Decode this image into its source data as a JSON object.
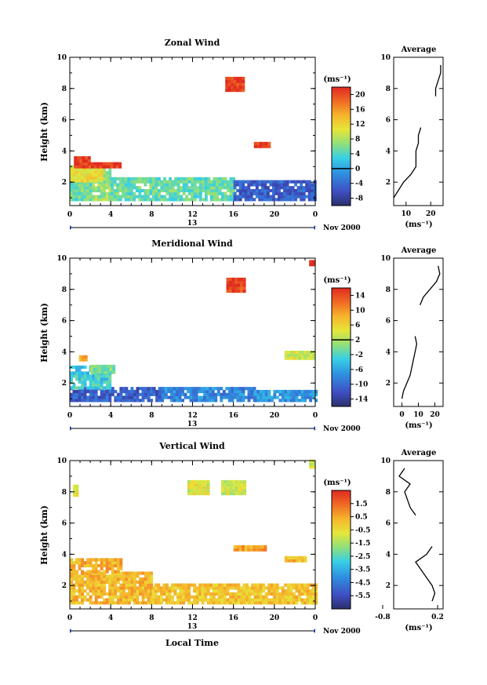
{
  "figure": {
    "bottom_label": "Local Time",
    "date_label": "Nov 2000",
    "day_label": "13",
    "unit_label": "(ms⁻¹)"
  },
  "chart_data": [
    {
      "type": "heatmap",
      "title": "Zonal Wind",
      "xlabel": "",
      "ylabel": "Height (km)",
      "xlim": [
        0,
        24
      ],
      "ylim": [
        0.5,
        10
      ],
      "x_ticks": [
        "0",
        "4",
        "8",
        "12",
        "16",
        "20",
        "0"
      ],
      "y_ticks": [
        "2",
        "4",
        "6",
        "8",
        "10"
      ],
      "colorbar": {
        "label": "(ms⁻¹)",
        "range": [
          -10,
          22
        ],
        "ticks": [
          "-8",
          "-4",
          "0",
          "4",
          "8",
          "12",
          "16",
          "20"
        ],
        "line_at": 0
      },
      "regions": [
        {
          "t": [
            0,
            4
          ],
          "h": [
            0.8,
            2.9
          ],
          "v": 7
        },
        {
          "t": [
            0,
            2
          ],
          "h": [
            0.8,
            2.0
          ],
          "v": 5
        },
        {
          "t": [
            0,
            3
          ],
          "h": [
            2.0,
            2.9
          ],
          "v": 11
        },
        {
          "t": [
            4,
            16
          ],
          "h": [
            0.8,
            2.3
          ],
          "v": 5
        },
        {
          "t": [
            16,
            24
          ],
          "h": [
            0.8,
            2.0
          ],
          "v": -5
        },
        {
          "t": [
            0.4,
            2.0
          ],
          "h": [
            2.9,
            3.6
          ],
          "v": 21
        },
        {
          "t": [
            1.8,
            4.8
          ],
          "h": [
            2.9,
            3.2
          ],
          "v": 21
        },
        {
          "t": [
            15.2,
            17.0
          ],
          "h": [
            7.8,
            8.6
          ],
          "v": 21
        },
        {
          "t": [
            18.0,
            19.5
          ],
          "h": [
            4.2,
            4.4
          ],
          "v": 21
        }
      ],
      "profile": {
        "title": "Average",
        "xlabel": "(ms⁻¹)",
        "xlim": [
          5,
          25
        ],
        "x_ticks": [
          "10",
          "20"
        ],
        "h": [
          1.0,
          1.5,
          2.0,
          2.5,
          3.0,
          3.5,
          4.0,
          4.5,
          5.0,
          5.5,
          7.5,
          8.0,
          8.5,
          9.0,
          9.5
        ],
        "v": [
          5,
          7,
          9,
          12,
          14,
          14,
          14,
          15,
          15,
          16,
          22,
          22,
          23,
          24,
          24
        ]
      }
    },
    {
      "type": "heatmap",
      "title": "Meridional Wind",
      "xlabel": "",
      "ylabel": "Height (km)",
      "xlim": [
        0,
        24
      ],
      "ylim": [
        0.5,
        10
      ],
      "x_ticks": [
        "0",
        "4",
        "8",
        "12",
        "16",
        "20",
        "0"
      ],
      "y_ticks": [
        "2",
        "4",
        "6",
        "8",
        "10"
      ],
      "colorbar": {
        "label": "(ms⁻¹)",
        "range": [
          -16,
          16
        ],
        "ticks": [
          "-14",
          "-10",
          "-6",
          "-2",
          "2",
          "6",
          "10",
          "14"
        ],
        "line_at": 2
      },
      "regions": [
        {
          "t": [
            0,
            9
          ],
          "h": [
            0.8,
            1.6
          ],
          "v": -11
        },
        {
          "t": [
            9,
            18
          ],
          "h": [
            0.8,
            1.7
          ],
          "v": -8
        },
        {
          "t": [
            0,
            4
          ],
          "h": [
            1.6,
            3.0
          ],
          "v": -3
        },
        {
          "t": [
            2.0,
            4.2
          ],
          "h": [
            2.6,
            3.0
          ],
          "v": 0
        },
        {
          "t": [
            18,
            24
          ],
          "h": [
            0.8,
            1.5
          ],
          "v": -7
        },
        {
          "t": [
            0.9,
            1.5
          ],
          "h": [
            3.4,
            3.7
          ],
          "v": 9
        },
        {
          "t": [
            15.3,
            17.0
          ],
          "h": [
            7.8,
            8.6
          ],
          "v": 14
        },
        {
          "t": [
            23.4,
            23.9
          ],
          "h": [
            9.5,
            9.8
          ],
          "v": 15
        },
        {
          "t": [
            21.0,
            23.8
          ],
          "h": [
            3.5,
            3.9
          ],
          "v": 4
        }
      ],
      "profile": {
        "title": "Average",
        "xlabel": "(ms⁻¹)",
        "xlim": [
          -5,
          25
        ],
        "x_ticks": [
          "0",
          "10",
          "20"
        ],
        "h": [
          1.0,
          1.5,
          2.0,
          2.5,
          3.0,
          3.5,
          4.0,
          4.5,
          5.0,
          7.0,
          7.5,
          8.0,
          8.5,
          9.0,
          9.5
        ],
        "v": [
          0,
          1,
          3,
          5,
          6,
          7,
          8,
          9,
          8,
          11,
          13,
          17,
          21,
          23,
          22
        ]
      }
    },
    {
      "type": "heatmap",
      "title": "Vertical Wind",
      "xlabel": "Local Time",
      "ylabel": "Height (km)",
      "xlim": [
        0,
        24
      ],
      "ylim": [
        0.5,
        10
      ],
      "x_ticks": [
        "0",
        "4",
        "8",
        "12",
        "16",
        "20",
        "0"
      ],
      "y_ticks": [
        "2",
        "4",
        "6",
        "8",
        "10"
      ],
      "colorbar": {
        "label": "(ms⁻¹)",
        "range": [
          -6.5,
          2.5
        ],
        "ticks": [
          "-5.5",
          "-4.5",
          "-3.5",
          "-2.5",
          "-1.5",
          "-0.5",
          "0.5",
          "1.5"
        ],
        "line_at": null
      },
      "regions": [
        {
          "t": [
            0,
            8
          ],
          "h": [
            0.8,
            2.8
          ],
          "v": 0.2
        },
        {
          "t": [
            0,
            5
          ],
          "h": [
            2.8,
            3.6
          ],
          "v": 0.4
        },
        {
          "t": [
            8,
            24
          ],
          "h": [
            0.8,
            2.0
          ],
          "v": 0.0
        },
        {
          "t": [
            0.3,
            0.7
          ],
          "h": [
            7.7,
            8.3
          ],
          "v": -0.8
        },
        {
          "t": [
            11.5,
            13.5
          ],
          "h": [
            7.8,
            8.6
          ],
          "v": -0.9
        },
        {
          "t": [
            14.8,
            17.2
          ],
          "h": [
            7.8,
            8.7
          ],
          "v": -1.0
        },
        {
          "t": [
            23.4,
            23.9
          ],
          "h": [
            9.5,
            9.9
          ],
          "v": -1.2
        },
        {
          "t": [
            16.0,
            19.0
          ],
          "h": [
            4.2,
            4.5
          ],
          "v": 0.5
        },
        {
          "t": [
            21.0,
            23.0
          ],
          "h": [
            3.5,
            3.8
          ],
          "v": 0.3
        }
      ],
      "profile": {
        "title": "Average",
        "xlabel": "(ms⁻¹)",
        "xlim": [
          -0.6,
          0.3
        ],
        "x_ticks": [
          "-0.8",
          "0.2"
        ],
        "h": [
          1.0,
          1.5,
          2.0,
          2.5,
          3.0,
          3.5,
          4.0,
          4.5,
          6.5,
          7.0,
          7.5,
          8.0,
          8.5,
          9.0,
          9.5
        ],
        "v": [
          0.1,
          0.15,
          0.1,
          0.0,
          -0.1,
          -0.2,
          0.0,
          0.1,
          -0.2,
          -0.3,
          -0.35,
          -0.4,
          -0.3,
          -0.5,
          -0.4
        ]
      }
    }
  ]
}
